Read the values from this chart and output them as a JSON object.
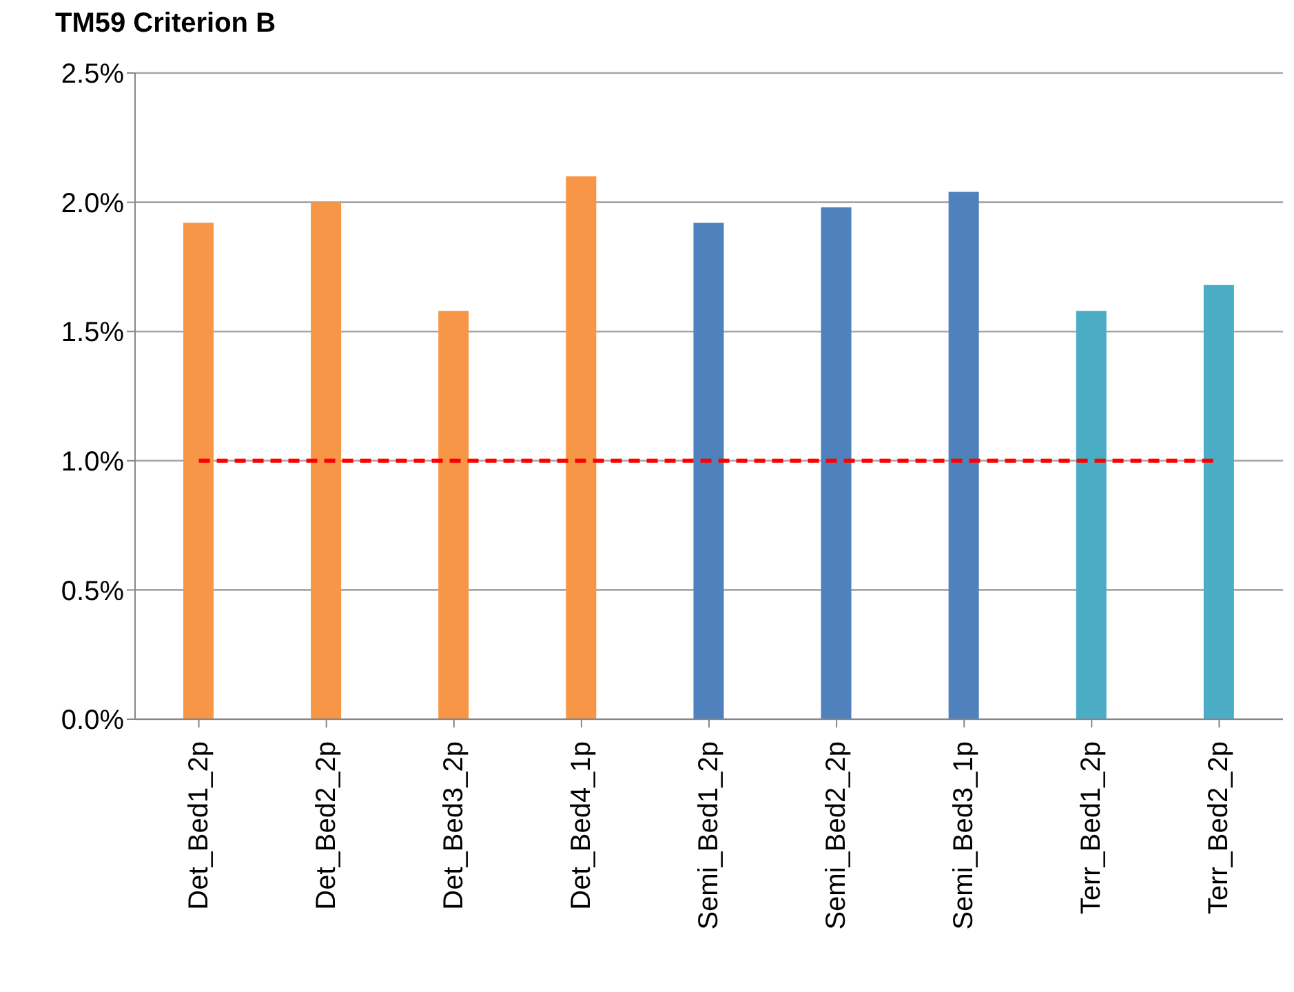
{
  "chart_data": {
    "type": "bar",
    "title": "TM59 Criterion B",
    "categories": [
      "Det_Bed1_2p",
      "Det_Bed2_2p",
      "Det_Bed3_2p",
      "Det_Bed4_1p",
      "Semi_Bed1_2p",
      "Semi_Bed2_2p",
      "Semi_Bed3_1p",
      "Terr_Bed1_2p",
      "Terr_Bed2_2p"
    ],
    "values": [
      1.92,
      2.0,
      1.58,
      2.1,
      1.92,
      1.98,
      2.04,
      1.58,
      1.68
    ],
    "colors": [
      "#f79646",
      "#f79646",
      "#f79646",
      "#f79646",
      "#4f81bd",
      "#4f81bd",
      "#4f81bd",
      "#4bacc6",
      "#4bacc6"
    ],
    "ylim": [
      0,
      2.5
    ],
    "yticks": [
      {
        "value": 0,
        "label": "0.0%"
      },
      {
        "value": 0.5,
        "label": "0.5%"
      },
      {
        "value": 1,
        "label": "1.0%"
      },
      {
        "value": 1.5,
        "label": "1.5%"
      },
      {
        "value": 2,
        "label": "2.0%"
      },
      {
        "value": 2.5,
        "label": "2.5%"
      }
    ],
    "grid": "y",
    "ref_lines": [
      {
        "axis": "y",
        "value": 1,
        "label": null,
        "color": "#ff0000",
        "line_style": "dashed"
      }
    ]
  }
}
